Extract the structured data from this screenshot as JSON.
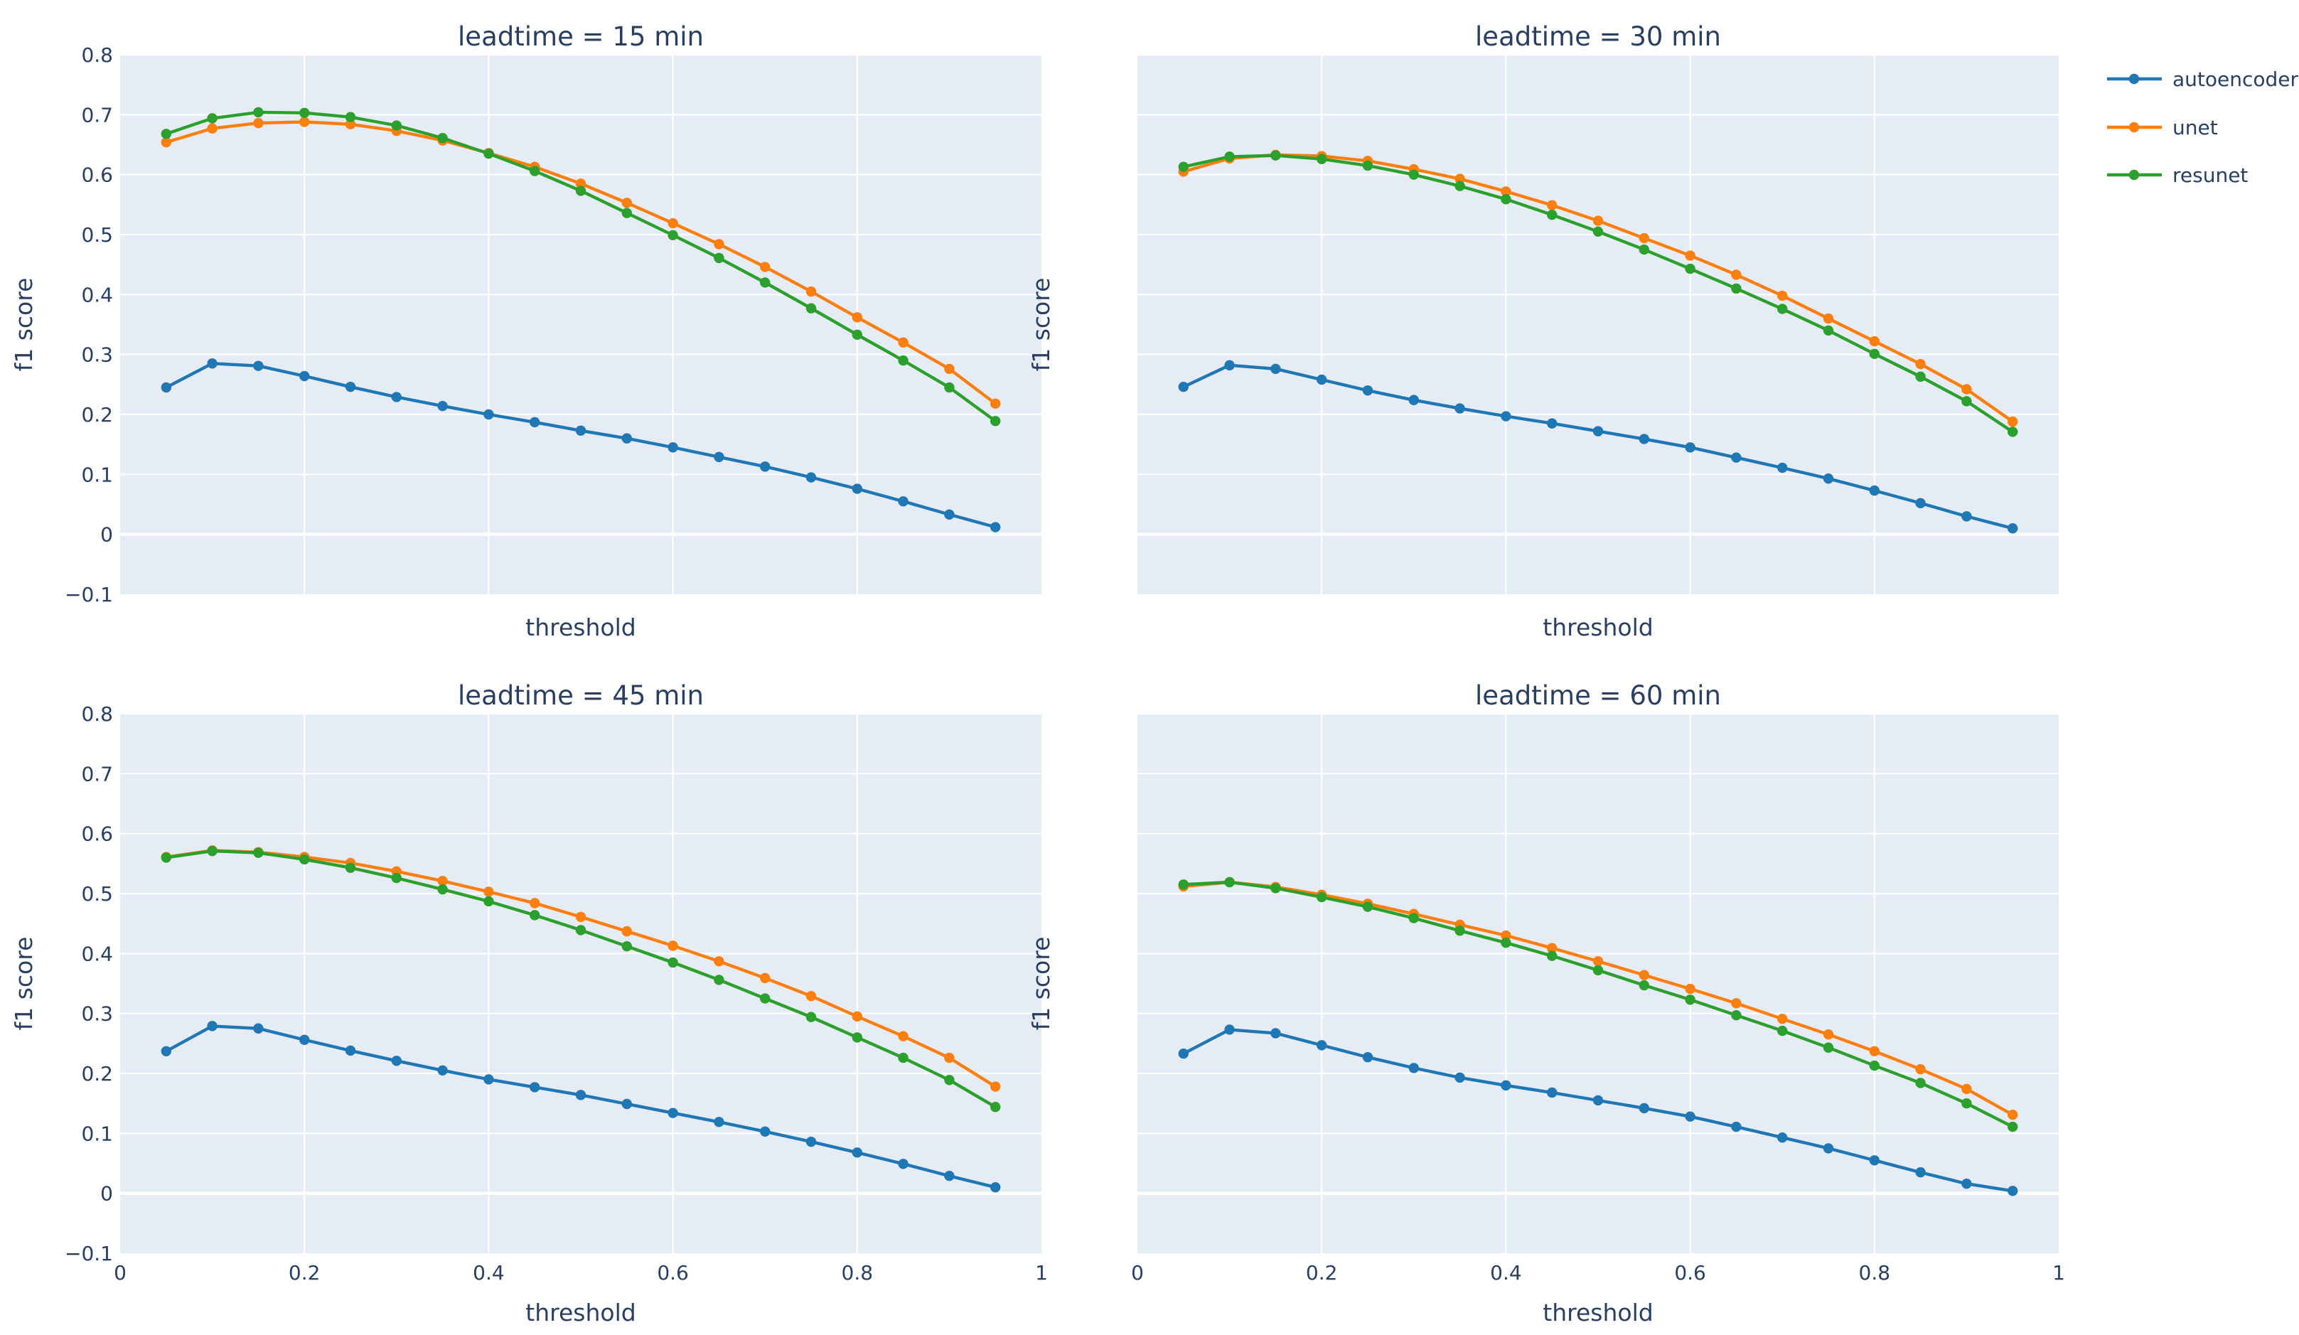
{
  "chart_data": {
    "type": "line",
    "shared_x": [
      0.05,
      0.1,
      0.15,
      0.2,
      0.25,
      0.3,
      0.35,
      0.4,
      0.45,
      0.5,
      0.55,
      0.6,
      0.65,
      0.7,
      0.75,
      0.8,
      0.85,
      0.9,
      0.95
    ],
    "xlabel": "threshold",
    "ylabel": "f1 score",
    "xlim": [
      0,
      1
    ],
    "ylim": [
      -0.1,
      0.8
    ],
    "x_ticks": [
      "0",
      "0.2",
      "0.4",
      "0.6",
      "0.8",
      "1"
    ],
    "y_ticks": [
      "−0.1",
      "0",
      "0.1",
      "0.2",
      "0.3",
      "0.4",
      "0.5",
      "0.6",
      "0.7",
      "0.8"
    ],
    "legend": {
      "position": "top-right",
      "entries": [
        {
          "name": "autoencoder",
          "color": "#1f77b4"
        },
        {
          "name": "unet",
          "color": "#ff7f0e"
        },
        {
          "name": "resunet",
          "color": "#2ca02c"
        }
      ]
    },
    "subplots": [
      {
        "title": "leadtime = 15 min",
        "series": [
          {
            "name": "autoencoder",
            "values": [
              0.245,
              0.285,
              0.281,
              0.264,
              0.246,
              0.229,
              0.214,
              0.2,
              0.187,
              0.173,
              0.16,
              0.145,
              0.129,
              0.113,
              0.095,
              0.076,
              0.055,
              0.033,
              0.012
            ]
          },
          {
            "name": "unet",
            "values": [
              0.654,
              0.677,
              0.686,
              0.688,
              0.684,
              0.673,
              0.657,
              0.636,
              0.613,
              0.585,
              0.553,
              0.519,
              0.484,
              0.446,
              0.405,
              0.362,
              0.32,
              0.276,
              0.218
            ]
          },
          {
            "name": "resunet",
            "values": [
              0.668,
              0.694,
              0.704,
              0.703,
              0.696,
              0.682,
              0.661,
              0.635,
              0.606,
              0.573,
              0.536,
              0.499,
              0.461,
              0.42,
              0.377,
              0.333,
              0.29,
              0.245,
              0.189
            ]
          }
        ]
      },
      {
        "title": "leadtime = 30 min",
        "series": [
          {
            "name": "autoencoder",
            "values": [
              0.246,
              0.282,
              0.276,
              0.258,
              0.24,
              0.224,
              0.21,
              0.197,
              0.185,
              0.172,
              0.159,
              0.145,
              0.128,
              0.111,
              0.093,
              0.073,
              0.052,
              0.03,
              0.01
            ]
          },
          {
            "name": "unet",
            "values": [
              0.605,
              0.627,
              0.633,
              0.631,
              0.623,
              0.609,
              0.593,
              0.572,
              0.549,
              0.523,
              0.494,
              0.465,
              0.433,
              0.398,
              0.36,
              0.322,
              0.284,
              0.242,
              0.188
            ]
          },
          {
            "name": "resunet",
            "values": [
              0.613,
              0.63,
              0.632,
              0.626,
              0.615,
              0.6,
              0.581,
              0.559,
              0.533,
              0.505,
              0.475,
              0.443,
              0.41,
              0.376,
              0.34,
              0.301,
              0.263,
              0.222,
              0.171
            ]
          }
        ]
      },
      {
        "title": "leadtime = 45 min",
        "series": [
          {
            "name": "autoencoder",
            "values": [
              0.237,
              0.279,
              0.275,
              0.256,
              0.238,
              0.221,
              0.205,
              0.19,
              0.177,
              0.164,
              0.149,
              0.134,
              0.119,
              0.103,
              0.086,
              0.068,
              0.049,
              0.029,
              0.01
            ]
          },
          {
            "name": "unet",
            "values": [
              0.561,
              0.572,
              0.569,
              0.561,
              0.551,
              0.537,
              0.521,
              0.503,
              0.484,
              0.461,
              0.437,
              0.413,
              0.387,
              0.359,
              0.329,
              0.295,
              0.262,
              0.226,
              0.178
            ]
          },
          {
            "name": "resunet",
            "values": [
              0.56,
              0.571,
              0.568,
              0.557,
              0.543,
              0.526,
              0.507,
              0.487,
              0.464,
              0.439,
              0.412,
              0.385,
              0.356,
              0.325,
              0.294,
              0.26,
              0.226,
              0.189,
              0.144
            ]
          }
        ]
      },
      {
        "title": "leadtime = 60 min",
        "series": [
          {
            "name": "autoencoder",
            "values": [
              0.233,
              0.273,
              0.267,
              0.247,
              0.227,
              0.209,
              0.193,
              0.18,
              0.168,
              0.155,
              0.142,
              0.128,
              0.111,
              0.093,
              0.075,
              0.055,
              0.035,
              0.016,
              0.004
            ]
          },
          {
            "name": "unet",
            "values": [
              0.512,
              0.519,
              0.511,
              0.498,
              0.483,
              0.466,
              0.448,
              0.43,
              0.409,
              0.387,
              0.364,
              0.341,
              0.317,
              0.291,
              0.265,
              0.237,
              0.207,
              0.174,
              0.131
            ]
          },
          {
            "name": "resunet",
            "values": [
              0.515,
              0.519,
              0.509,
              0.494,
              0.478,
              0.459,
              0.438,
              0.418,
              0.396,
              0.372,
              0.347,
              0.323,
              0.297,
              0.271,
              0.243,
              0.213,
              0.184,
              0.15,
              0.111
            ]
          }
        ]
      }
    ]
  }
}
